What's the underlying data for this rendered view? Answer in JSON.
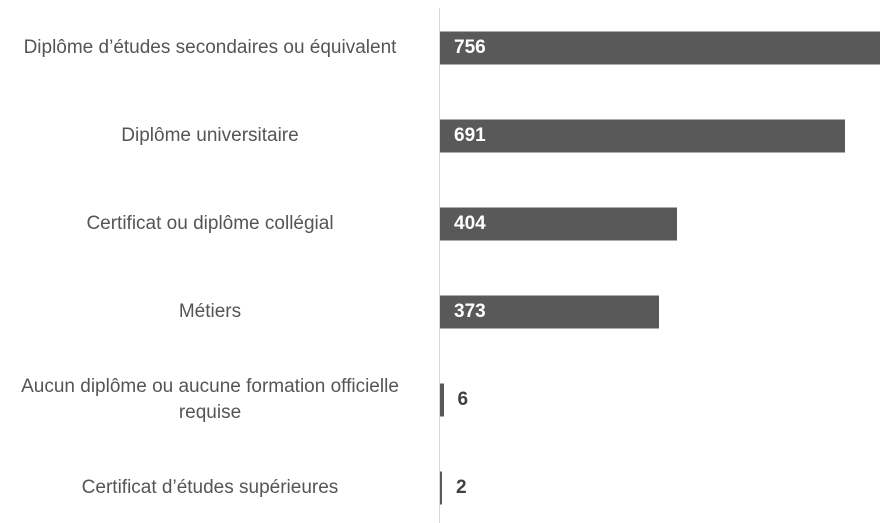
{
  "chart_data": {
    "type": "barh",
    "categories": [
      "Diplôme d’études secondaires ou équivalent",
      "Diplôme universitaire",
      "Certificat ou diplôme collégial",
      "Métiers",
      "Aucun diplôme ou aucune formation officielle requise",
      "Certificat d’études supérieures"
    ],
    "values": [
      756,
      691,
      404,
      373,
      6,
      2
    ],
    "color": "#595959",
    "xlim": [
      0,
      750
    ]
  }
}
